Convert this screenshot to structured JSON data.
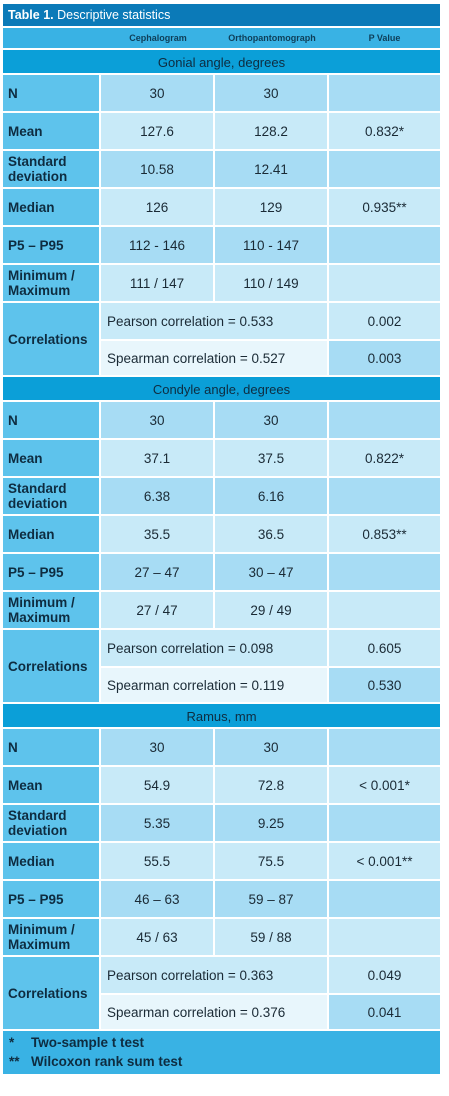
{
  "table": {
    "label": "Table 1.",
    "title": "Descriptive statistics",
    "columns": [
      "",
      "Cephalogram",
      "Orthopantomograph",
      "P Value"
    ]
  },
  "sections": [
    {
      "heading": "Gonial angle, degrees",
      "rows": [
        {
          "label": "N",
          "v1": "30",
          "v2": "30",
          "p": ""
        },
        {
          "label": "Mean",
          "v1": "127.6",
          "v2": "128.2",
          "p": "0.832*"
        },
        {
          "label": "Standard deviation",
          "v1": "10.58",
          "v2": "12.41",
          "p": ""
        },
        {
          "label": "Median",
          "v1": "126",
          "v2": "129",
          "p": "0.935**"
        },
        {
          "label": "P5 – P95",
          "v1": "112 - 146",
          "v2": "110 - 147",
          "p": ""
        },
        {
          "label": "Minimum / Maximum",
          "v1": "111 / 147",
          "v2": "110 / 149",
          "p": ""
        }
      ],
      "correlations": {
        "label": "Correlations",
        "pearson": "Pearson correlation = 0.533",
        "pearson_p": "0.002",
        "spearman": "Spearman correlation = 0.527",
        "spearman_p": "0.003"
      }
    },
    {
      "heading": "Condyle angle, degrees",
      "rows": [
        {
          "label": "N",
          "v1": "30",
          "v2": "30",
          "p": ""
        },
        {
          "label": "Mean",
          "v1": "37.1",
          "v2": "37.5",
          "p": "0.822*"
        },
        {
          "label": "Standard deviation",
          "v1": "6.38",
          "v2": "6.16",
          "p": ""
        },
        {
          "label": "Median",
          "v1": "35.5",
          "v2": "36.5",
          "p": "0.853**"
        },
        {
          "label": "P5 – P95",
          "v1": "27 – 47",
          "v2": "30 – 47",
          "p": ""
        },
        {
          "label": "Minimum / Maximum",
          "v1": "27 / 47",
          "v2": "29 / 49",
          "p": ""
        }
      ],
      "correlations": {
        "label": "Correlations",
        "pearson": "Pearson correlation = 0.098",
        "pearson_p": "0.605",
        "spearman": "Spearman correlation = 0.119",
        "spearman_p": "0.530"
      }
    },
    {
      "heading": "Ramus, mm",
      "rows": [
        {
          "label": "N",
          "v1": "30",
          "v2": "30",
          "p": ""
        },
        {
          "label": "Mean",
          "v1": "54.9",
          "v2": "72.8",
          "p": "< 0.001*"
        },
        {
          "label": "Standard deviation",
          "v1": "5.35",
          "v2": "9.25",
          "p": ""
        },
        {
          "label": "Median",
          "v1": "55.5",
          "v2": "75.5",
          "p": "< 0.001**"
        },
        {
          "label": "P5 – P95",
          "v1": "46 – 63",
          "v2": "59 – 87",
          "p": ""
        },
        {
          "label": "Minimum / Maximum",
          "v1": "45 / 63",
          "v2": "59 / 88",
          "p": ""
        }
      ],
      "correlations": {
        "label": "Correlations",
        "pearson": "Pearson correlation = 0.363",
        "pearson_p": "0.049",
        "spearman": "Spearman correlation = 0.376",
        "spearman_p": "0.041"
      }
    }
  ],
  "footnotes": [
    {
      "mark": "*",
      "text": "Two-sample t test"
    },
    {
      "mark": "**",
      "text": "Wilcoxon rank sum test"
    }
  ]
}
